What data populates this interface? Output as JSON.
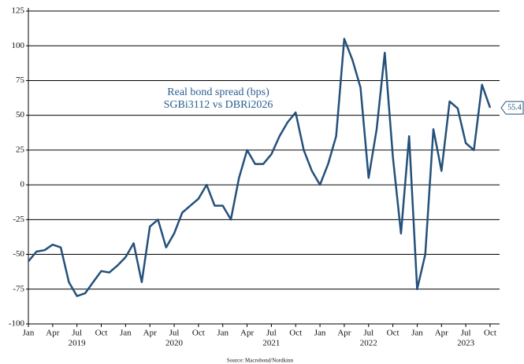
{
  "chart_data": {
    "type": "line",
    "annotation": [
      "Real bond spread (bps)",
      "SGBi3112 vs DBRi2026"
    ],
    "source": "Source: Macrobond/Nordkinn",
    "x": [
      "2019-01",
      "2019-02",
      "2019-03",
      "2019-04",
      "2019-05",
      "2019-06",
      "2019-07",
      "2019-08",
      "2019-09",
      "2019-10",
      "2019-11",
      "2019-12",
      "2020-01",
      "2020-02",
      "2020-03",
      "2020-04",
      "2020-05",
      "2020-06",
      "2020-07",
      "2020-08",
      "2020-09",
      "2020-10",
      "2020-11",
      "2020-12",
      "2021-01",
      "2021-02",
      "2021-03",
      "2021-04",
      "2021-05",
      "2021-06",
      "2021-07",
      "2021-08",
      "2021-09",
      "2021-10",
      "2021-11",
      "2021-12",
      "2022-01",
      "2022-02",
      "2022-03",
      "2022-04",
      "2022-05",
      "2022-06",
      "2022-07",
      "2022-08",
      "2022-09",
      "2022-10",
      "2022-11",
      "2022-12",
      "2023-01",
      "2023-02",
      "2023-03",
      "2023-04",
      "2023-05",
      "2023-06",
      "2023-07",
      "2023-08",
      "2023-09",
      "2023-10"
    ],
    "series": [
      {
        "name": "Real bond spread (bps)",
        "color": "#24507a",
        "values": [
          -55,
          -48,
          -47,
          -43,
          -45,
          -70,
          -80,
          -78,
          -70,
          -62,
          -63,
          -58,
          -52,
          -42,
          -70,
          -30,
          -25,
          -45,
          -35,
          -20,
          -15,
          -10,
          0,
          -15,
          -15,
          -25,
          5,
          25,
          15,
          15,
          22,
          35,
          45,
          52,
          25,
          10,
          0,
          15,
          35,
          105,
          90,
          70,
          5,
          40,
          95,
          20,
          -35,
          35,
          -75,
          -50,
          40,
          10,
          60,
          55,
          30,
          25,
          72,
          55.4
        ]
      }
    ],
    "ylim": [
      -100,
      125
    ],
    "yticks": [
      -100,
      -75,
      -50,
      -25,
      0,
      25,
      50,
      75,
      100,
      125
    ],
    "grid": true,
    "xticks": [
      {
        "value": "2019-01",
        "label": "Jan"
      },
      {
        "value": "2019-04",
        "label": "Apr"
      },
      {
        "value": "2019-07",
        "label": "Jul"
      },
      {
        "value": "2019-10",
        "label": "Oct"
      },
      {
        "value": "2020-01",
        "label": "Jan"
      },
      {
        "value": "2020-04",
        "label": "Apr"
      },
      {
        "value": "2020-07",
        "label": "Jul"
      },
      {
        "value": "2020-10",
        "label": "Oct"
      },
      {
        "value": "2021-01",
        "label": "Jan"
      },
      {
        "value": "2021-04",
        "label": "Apr"
      },
      {
        "value": "2021-07",
        "label": "Jul"
      },
      {
        "value": "2021-10",
        "label": "Oct"
      },
      {
        "value": "2022-01",
        "label": "Jan"
      },
      {
        "value": "2022-04",
        "label": "Apr"
      },
      {
        "value": "2022-07",
        "label": "Jul"
      },
      {
        "value": "2022-10",
        "label": "Oct"
      },
      {
        "value": "2023-01",
        "label": "Jan"
      },
      {
        "value": "2023-04",
        "label": "Apr"
      },
      {
        "value": "2023-07",
        "label": "Jul"
      },
      {
        "value": "2023-10",
        "label": "Oct"
      }
    ],
    "year_labels": [
      {
        "value": "2019-07",
        "label": "2019"
      },
      {
        "value": "2020-07",
        "label": "2020"
      },
      {
        "value": "2021-07",
        "label": "2021"
      },
      {
        "value": "2022-07",
        "label": "2022"
      },
      {
        "value": "2023-07",
        "label": "2023"
      }
    ]
  }
}
